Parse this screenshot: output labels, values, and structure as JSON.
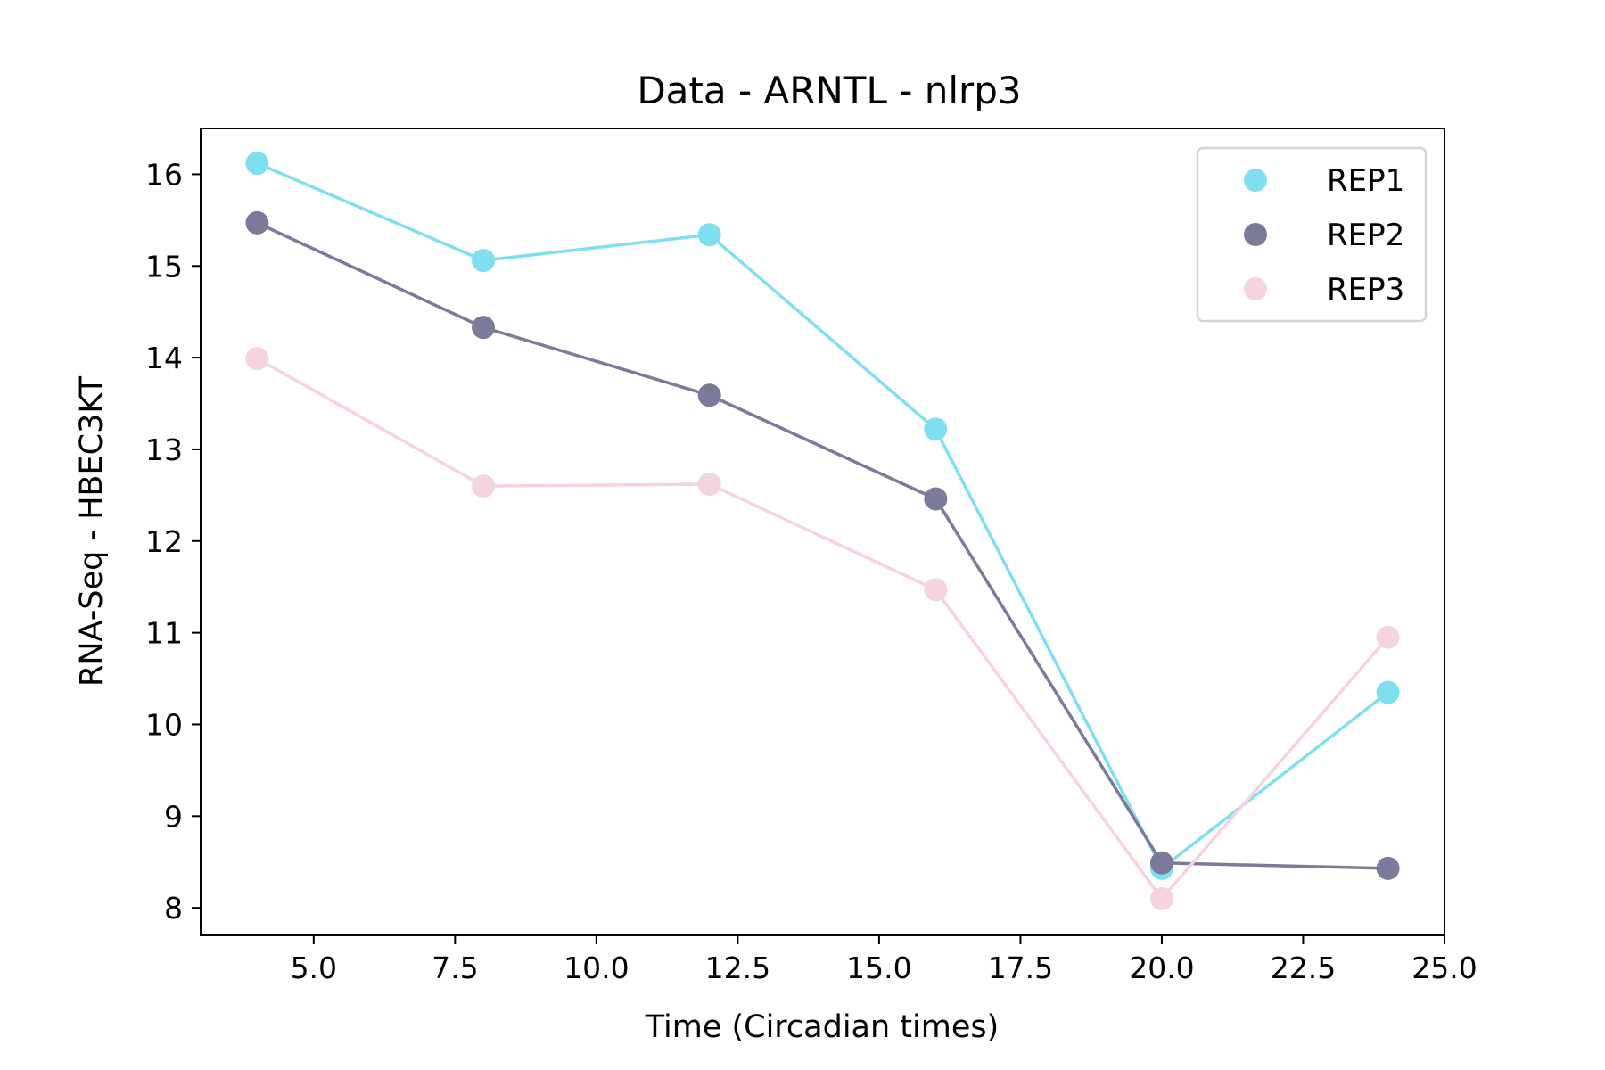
{
  "chart_data": {
    "type": "line",
    "title": "Data - ARNTL - nlrp3",
    "xlabel": "Time (Circadian times)",
    "ylabel": "RNA-Seq - HBEC3KT",
    "xlim": [
      3.0,
      25.0
    ],
    "ylim": [
      7.7,
      16.5
    ],
    "xticks": [
      5.0,
      7.5,
      10.0,
      12.5,
      15.0,
      17.5,
      20.0,
      22.5,
      25.0
    ],
    "xtick_labels": [
      "5.0",
      "7.5",
      "10.0",
      "12.5",
      "15.0",
      "17.5",
      "20.0",
      "22.5",
      "25.0"
    ],
    "yticks": [
      8,
      9,
      10,
      11,
      12,
      13,
      14,
      15,
      16
    ],
    "ytick_labels": [
      "8",
      "9",
      "10",
      "11",
      "12",
      "13",
      "14",
      "15",
      "16"
    ],
    "grid": false,
    "legend_position": "top-right",
    "x": [
      4,
      8,
      12,
      16,
      20,
      24
    ],
    "series": [
      {
        "name": "REP1",
        "color": "#7ddfef",
        "values": [
          16.12,
          15.06,
          15.34,
          13.22,
          8.43,
          10.35
        ]
      },
      {
        "name": "REP2",
        "color": "#7b7a9b",
        "values": [
          15.47,
          14.33,
          13.59,
          12.46,
          8.49,
          8.43
        ]
      },
      {
        "name": "REP3",
        "color": "#f5d4df",
        "values": [
          13.99,
          12.6,
          12.62,
          11.47,
          8.1,
          10.95
        ]
      }
    ]
  }
}
